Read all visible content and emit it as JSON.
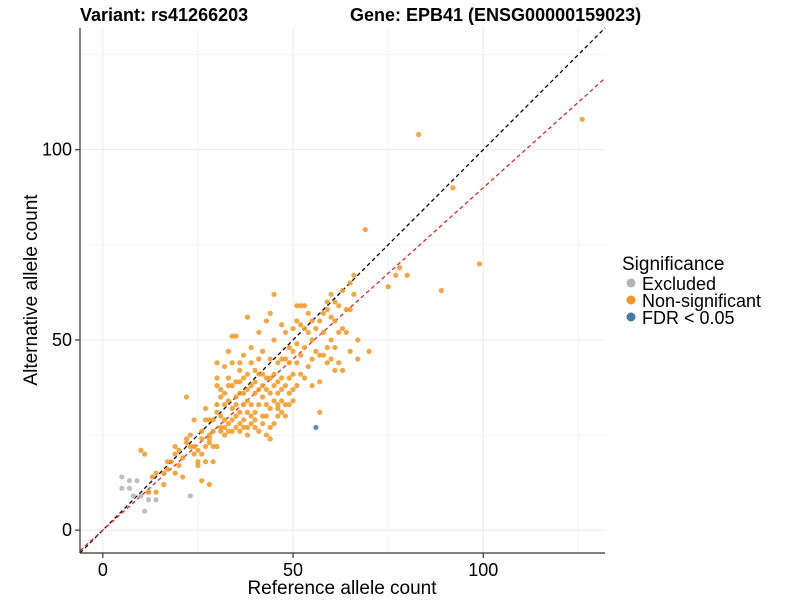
{
  "chart_data": {
    "type": "scatter",
    "title_variant": "Variant: rs41266203",
    "title_gene": "Gene: EPB41 (ENSG00000159023)",
    "xlabel": "Reference allele count",
    "ylabel": "Alternative allele count",
    "xlim": [
      -6,
      132
    ],
    "ylim": [
      -6,
      132
    ],
    "xticks": [
      0,
      50,
      100
    ],
    "yticks": [
      0,
      50,
      100
    ],
    "grid": true,
    "legend": {
      "title": "Significance",
      "position": "right",
      "entries": [
        {
          "name": "Excluded",
          "color": "#b3b3b3"
        },
        {
          "name": "Non-significant",
          "color": "#f5961e"
        },
        {
          "name": "FDR < 0.05",
          "color": "#4a75a8"
        }
      ]
    },
    "reference_lines": [
      {
        "name": "identity",
        "slope": 1.0,
        "intercept": 0,
        "color": "#000000",
        "style": "dashed"
      },
      {
        "name": "expected",
        "slope": 0.9,
        "intercept": 0,
        "color": "#e8251f",
        "style": "dashed"
      }
    ],
    "series": [
      {
        "name": "Excluded",
        "color": "#b3b3b3",
        "points": [
          [
            5,
            14
          ],
          [
            5,
            11
          ],
          [
            7,
            13
          ],
          [
            7,
            11
          ],
          [
            9,
            13
          ],
          [
            8,
            9
          ],
          [
            10,
            9
          ],
          [
            11,
            5
          ],
          [
            12,
            8
          ],
          [
            14,
            8
          ],
          [
            12,
            10
          ],
          [
            23,
            9
          ]
        ]
      },
      {
        "name": "FDR < 0.05",
        "color": "#4a75a8",
        "points": [
          [
            56,
            27
          ]
        ]
      },
      {
        "name": "Non-significant",
        "color": "#f5961e",
        "points": [
          [
            10,
            21
          ],
          [
            11,
            20
          ],
          [
            13,
            14
          ],
          [
            14,
            15
          ],
          [
            12,
            10
          ],
          [
            14,
            10
          ],
          [
            16,
            12
          ],
          [
            16,
            15
          ],
          [
            17,
            16
          ],
          [
            17,
            18
          ],
          [
            18,
            18
          ],
          [
            19,
            20
          ],
          [
            19,
            15
          ],
          [
            19,
            22
          ],
          [
            20,
            21
          ],
          [
            20,
            17
          ],
          [
            21,
            19
          ],
          [
            21,
            14
          ],
          [
            22,
            23
          ],
          [
            22,
            24
          ],
          [
            22,
            35
          ],
          [
            23,
            22
          ],
          [
            23,
            25
          ],
          [
            24,
            22
          ],
          [
            24,
            29
          ],
          [
            24,
            20
          ],
          [
            25,
            17
          ],
          [
            25,
            18
          ],
          [
            25,
            21
          ],
          [
            26,
            13
          ],
          [
            26,
            20
          ],
          [
            26,
            24
          ],
          [
            26,
            26
          ],
          [
            27,
            29
          ],
          [
            27,
            32
          ],
          [
            27,
            18
          ],
          [
            27,
            22
          ],
          [
            28,
            23
          ],
          [
            28,
            25
          ],
          [
            28,
            24
          ],
          [
            28,
            29
          ],
          [
            28,
            12
          ],
          [
            29,
            18
          ],
          [
            29,
            22
          ],
          [
            29,
            26
          ],
          [
            29,
            29
          ],
          [
            30,
            31
          ],
          [
            30,
            38
          ],
          [
            30,
            40
          ],
          [
            30,
            44
          ],
          [
            30,
            33
          ],
          [
            30,
            22
          ],
          [
            31,
            26
          ],
          [
            31,
            27
          ],
          [
            31,
            30
          ],
          [
            31,
            35
          ],
          [
            31,
            37
          ],
          [
            32,
            25
          ],
          [
            32,
            27
          ],
          [
            32,
            29
          ],
          [
            32,
            33
          ],
          [
            32,
            36
          ],
          [
            32,
            43
          ],
          [
            33,
            26
          ],
          [
            33,
            28
          ],
          [
            33,
            34
          ],
          [
            33,
            38
          ],
          [
            33,
            40
          ],
          [
            33,
            47
          ],
          [
            34,
            26
          ],
          [
            34,
            29
          ],
          [
            34,
            32
          ],
          [
            34,
            38
          ],
          [
            34,
            44
          ],
          [
            34,
            51
          ],
          [
            35,
            27
          ],
          [
            35,
            30
          ],
          [
            35,
            33
          ],
          [
            35,
            35
          ],
          [
            35,
            39
          ],
          [
            35,
            51
          ],
          [
            36,
            26
          ],
          [
            36,
            28
          ],
          [
            36,
            31
          ],
          [
            36,
            36
          ],
          [
            36,
            39
          ],
          [
            36,
            42
          ],
          [
            36,
            44
          ],
          [
            37,
            27
          ],
          [
            37,
            29
          ],
          [
            37,
            33
          ],
          [
            37,
            36
          ],
          [
            37,
            40
          ],
          [
            37,
            46
          ],
          [
            38,
            27
          ],
          [
            38,
            31
          ],
          [
            38,
            34
          ],
          [
            38,
            37
          ],
          [
            38,
            41
          ],
          [
            38,
            56
          ],
          [
            38,
            25
          ],
          [
            39,
            28
          ],
          [
            39,
            30
          ],
          [
            39,
            33
          ],
          [
            39,
            38
          ],
          [
            39,
            44
          ],
          [
            39,
            48
          ],
          [
            40,
            29
          ],
          [
            40,
            31
          ],
          [
            40,
            36
          ],
          [
            40,
            39
          ],
          [
            40,
            42
          ],
          [
            40,
            27
          ],
          [
            41,
            26
          ],
          [
            41,
            33
          ],
          [
            41,
            37
          ],
          [
            41,
            41
          ],
          [
            41,
            45
          ],
          [
            41,
            52
          ],
          [
            42,
            28
          ],
          [
            42,
            30
          ],
          [
            42,
            35
          ],
          [
            42,
            38
          ],
          [
            42,
            41
          ],
          [
            42,
            47
          ],
          [
            43,
            25
          ],
          [
            43,
            30
          ],
          [
            43,
            33
          ],
          [
            43,
            37
          ],
          [
            43,
            40
          ],
          [
            43,
            55
          ],
          [
            44,
            24
          ],
          [
            44,
            27
          ],
          [
            44,
            32
          ],
          [
            44,
            36
          ],
          [
            44,
            40
          ],
          [
            44,
            45
          ],
          [
            44,
            57
          ],
          [
            45,
            28
          ],
          [
            45,
            34
          ],
          [
            45,
            38
          ],
          [
            45,
            41
          ],
          [
            45,
            50
          ],
          [
            45,
            62
          ],
          [
            46,
            30
          ],
          [
            46,
            32
          ],
          [
            46,
            36
          ],
          [
            46,
            39
          ],
          [
            46,
            44
          ],
          [
            46,
            33
          ],
          [
            47,
            31
          ],
          [
            47,
            34
          ],
          [
            47,
            37
          ],
          [
            47,
            40
          ],
          [
            47,
            45
          ],
          [
            47,
            54
          ],
          [
            48,
            30
          ],
          [
            48,
            33
          ],
          [
            48,
            38
          ],
          [
            48,
            45
          ],
          [
            48,
            52
          ],
          [
            49,
            33
          ],
          [
            49,
            36
          ],
          [
            49,
            40
          ],
          [
            49,
            44
          ],
          [
            49,
            48
          ],
          [
            50,
            34
          ],
          [
            50,
            37
          ],
          [
            50,
            41
          ],
          [
            50,
            47
          ],
          [
            50,
            53
          ],
          [
            51,
            38
          ],
          [
            51,
            44
          ],
          [
            51,
            49
          ],
          [
            51,
            55
          ],
          [
            51,
            59
          ],
          [
            52,
            41
          ],
          [
            52,
            46
          ],
          [
            52,
            54
          ],
          [
            52,
            59
          ],
          [
            53,
            40
          ],
          [
            53,
            48
          ],
          [
            53,
            53
          ],
          [
            53,
            59
          ],
          [
            54,
            43
          ],
          [
            54,
            52
          ],
          [
            54,
            57
          ],
          [
            55,
            38
          ],
          [
            55,
            45
          ],
          [
            55,
            50
          ],
          [
            55,
            55
          ],
          [
            56,
            47
          ],
          [
            56,
            53
          ],
          [
            57,
            39
          ],
          [
            57,
            46
          ],
          [
            57,
            31
          ],
          [
            57,
            55
          ],
          [
            58,
            46
          ],
          [
            58,
            52
          ],
          [
            58,
            57
          ],
          [
            59,
            44
          ],
          [
            59,
            48
          ],
          [
            59,
            58
          ],
          [
            59,
            60
          ],
          [
            60,
            45
          ],
          [
            60,
            50
          ],
          [
            60,
            56
          ],
          [
            60,
            62
          ],
          [
            61,
            42
          ],
          [
            61,
            48
          ],
          [
            61,
            55
          ],
          [
            61,
            60
          ],
          [
            62,
            44
          ],
          [
            62,
            52
          ],
          [
            62,
            59
          ],
          [
            63,
            42
          ],
          [
            63,
            53
          ],
          [
            63,
            63
          ],
          [
            64,
            52
          ],
          [
            64,
            58
          ],
          [
            65,
            47
          ],
          [
            65,
            58
          ],
          [
            65,
            65
          ],
          [
            66,
            67
          ],
          [
            66,
            62
          ],
          [
            67,
            50
          ],
          [
            67,
            45
          ],
          [
            69,
            79
          ],
          [
            70,
            47
          ],
          [
            75,
            64
          ],
          [
            77,
            67
          ],
          [
            78,
            69
          ],
          [
            80,
            67
          ],
          [
            83,
            104
          ],
          [
            89,
            63
          ],
          [
            92,
            90
          ],
          [
            99,
            70
          ],
          [
            126,
            108
          ]
        ]
      }
    ]
  }
}
